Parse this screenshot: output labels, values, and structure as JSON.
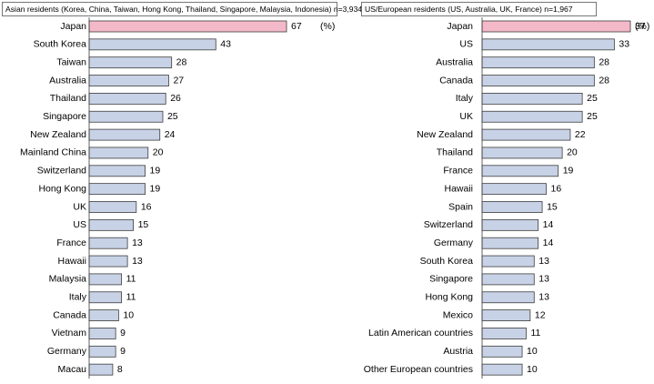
{
  "chart_data": [
    {
      "type": "bar",
      "title": "Asian residents (Korea, China, Taiwan, Hong Kong, Thailand, Singapore, Malaysia, Indonesia) n=3,934",
      "unit": "(%)",
      "categories": [
        "Japan",
        "South Korea",
        "Taiwan",
        "Australia",
        "Thailand",
        "Singapore",
        "New Zealand",
        "Mainland China",
        "Switzerland",
        "Hong Kong",
        "UK",
        "US",
        "France",
        "Hawaii",
        "Malaysia",
        "Italy",
        "Canada",
        "Vietnam",
        "Germany",
        "Macau"
      ],
      "values": [
        67,
        43,
        28,
        27,
        26,
        25,
        24,
        20,
        19,
        19,
        16,
        15,
        13,
        13,
        11,
        11,
        10,
        9,
        9,
        8
      ],
      "colors": [
        "#f4b9c8",
        "#c8d2e6",
        "#c8d2e6",
        "#c8d2e6",
        "#c8d2e6",
        "#c8d2e6",
        "#c8d2e6",
        "#c8d2e6",
        "#c8d2e6",
        "#c8d2e6",
        "#c8d2e6",
        "#c8d2e6",
        "#c8d2e6",
        "#c8d2e6",
        "#c8d2e6",
        "#c8d2e6",
        "#c8d2e6",
        "#c8d2e6",
        "#c8d2e6",
        "#c8d2e6"
      ]
    },
    {
      "type": "bar",
      "title": "US/European residents (US, Australia, UK, France) n=1,967",
      "unit": "(%)",
      "categories": [
        "Japan",
        "US",
        "Australia",
        "Canada",
        "Italy",
        "UK",
        "New Zealand",
        "Thailand",
        "France",
        "Hawaii",
        "Spain",
        "Switzerland",
        "Germany",
        "South Korea",
        "Singapore",
        "Hong Kong",
        "Mexico",
        "Latin American countries",
        "Austria",
        "Other European countries"
      ],
      "values": [
        37,
        33,
        28,
        28,
        25,
        25,
        22,
        20,
        19,
        16,
        15,
        14,
        14,
        13,
        13,
        13,
        12,
        11,
        10,
        10
      ],
      "colors": [
        "#f4b9c8",
        "#c8d2e6",
        "#c8d2e6",
        "#c8d2e6",
        "#c8d2e6",
        "#c8d2e6",
        "#c8d2e6",
        "#c8d2e6",
        "#c8d2e6",
        "#c8d2e6",
        "#c8d2e6",
        "#c8d2e6",
        "#c8d2e6",
        "#c8d2e6",
        "#c8d2e6",
        "#c8d2e6",
        "#c8d2e6",
        "#c8d2e6",
        "#c8d2e6",
        "#c8d2e6"
      ]
    }
  ]
}
